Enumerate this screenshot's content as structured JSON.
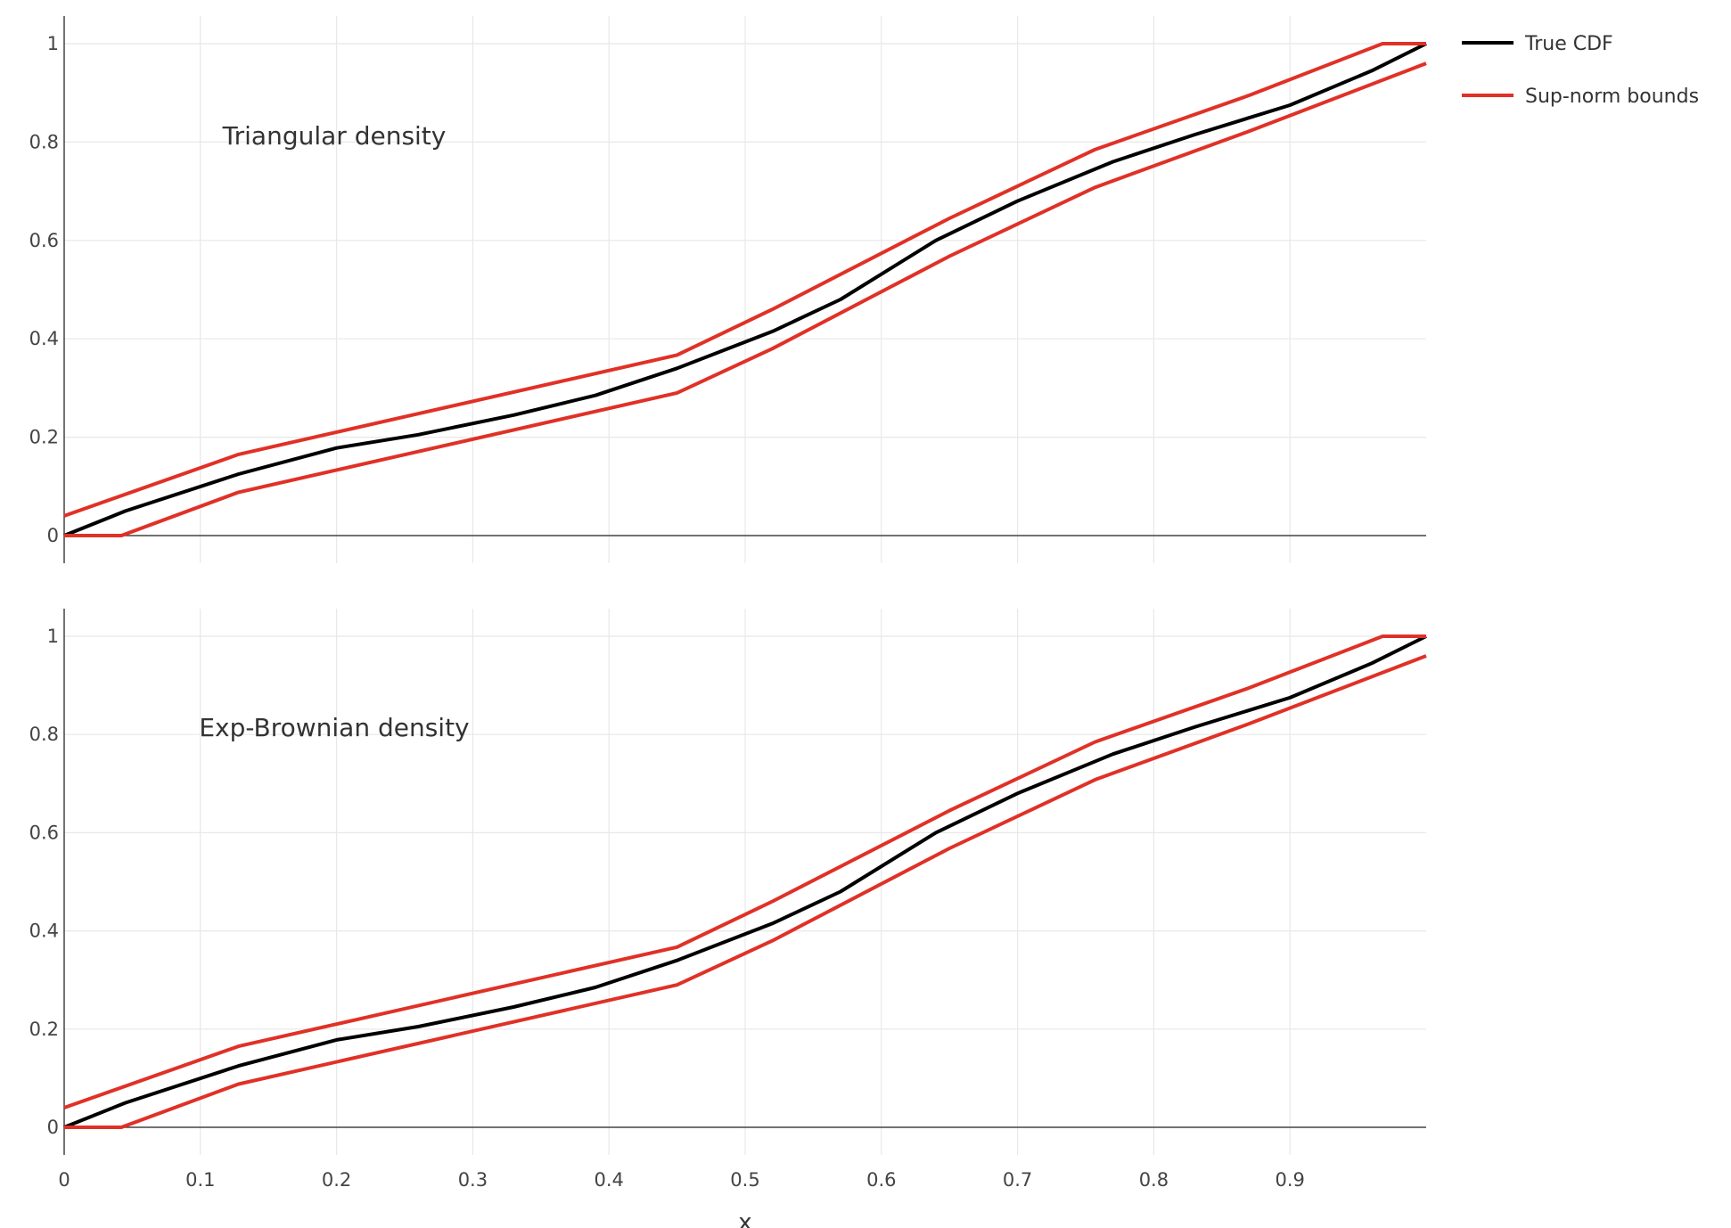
{
  "chart_data": [
    {
      "type": "line",
      "annotation": "Triangular  density",
      "xlim": [
        0,
        1
      ],
      "ylim": [
        0,
        1
      ],
      "x_ticks": [
        0,
        0.1,
        0.2,
        0.3,
        0.4,
        0.5,
        0.6,
        0.7,
        0.8,
        0.9
      ],
      "y_ticks": [
        0,
        0.2,
        0.4,
        0.6,
        0.8,
        1
      ],
      "grid": true,
      "series": [
        {
          "name": "True CDF",
          "color": "#000000",
          "x": [
            0,
            0.045,
            0.128,
            0.2,
            0.26,
            0.33,
            0.39,
            0.45,
            0.52,
            0.57,
            0.64,
            0.7,
            0.77,
            0.83,
            0.9,
            0.96,
            1.0
          ],
          "y": [
            0,
            0.05,
            0.125,
            0.178,
            0.205,
            0.245,
            0.285,
            0.34,
            0.415,
            0.48,
            0.6,
            0.68,
            0.76,
            0.815,
            0.875,
            0.945,
            1.0
          ]
        },
        {
          "name": "Sup-norm bounds",
          "color": "#e03127",
          "x": [
            0,
            0.128,
            0.45,
            0.52,
            0.65,
            0.757,
            0.87,
            0.968,
            1.0
          ],
          "y": [
            0.04,
            0.165,
            0.367,
            0.46,
            0.645,
            0.785,
            0.895,
            1.0,
            1.0
          ]
        },
        {
          "color": "#e03127",
          "x": [
            0,
            0.042,
            0.128,
            0.45,
            0.52,
            0.65,
            0.757,
            0.87,
            1.0
          ],
          "y": [
            0,
            0,
            0.088,
            0.29,
            0.38,
            0.568,
            0.708,
            0.822,
            0.96
          ]
        }
      ]
    },
    {
      "type": "line",
      "annotation": "Exp-Brownian  density",
      "xlim": [
        0,
        1
      ],
      "ylim": [
        0,
        1
      ],
      "x_ticks": [
        0,
        0.1,
        0.2,
        0.3,
        0.4,
        0.5,
        0.6,
        0.7,
        0.8,
        0.9
      ],
      "y_ticks": [
        0,
        0.2,
        0.4,
        0.6,
        0.8,
        1
      ],
      "grid": true,
      "xlabel": "x",
      "series": [
        {
          "name": "True CDF",
          "color": "#000000",
          "x": [
            0,
            0.045,
            0.128,
            0.2,
            0.26,
            0.33,
            0.39,
            0.45,
            0.52,
            0.57,
            0.64,
            0.7,
            0.77,
            0.83,
            0.9,
            0.96,
            1.0
          ],
          "y": [
            0,
            0.05,
            0.125,
            0.178,
            0.205,
            0.245,
            0.285,
            0.34,
            0.415,
            0.48,
            0.6,
            0.68,
            0.76,
            0.815,
            0.875,
            0.945,
            1.0
          ]
        },
        {
          "name": "Sup-norm bounds",
          "color": "#e03127",
          "x": [
            0,
            0.128,
            0.45,
            0.52,
            0.65,
            0.757,
            0.87,
            0.968,
            1.0
          ],
          "y": [
            0.04,
            0.165,
            0.367,
            0.46,
            0.645,
            0.785,
            0.895,
            1.0,
            1.0
          ]
        },
        {
          "color": "#e03127",
          "x": [
            0,
            0.042,
            0.128,
            0.45,
            0.52,
            0.65,
            0.757,
            0.87,
            1.0
          ],
          "y": [
            0,
            0,
            0.088,
            0.29,
            0.38,
            0.568,
            0.708,
            0.822,
            0.96
          ]
        }
      ]
    }
  ],
  "legend": {
    "placement": "top-right",
    "items": [
      {
        "label": "True CDF",
        "color": "#000000"
      },
      {
        "label": "Sup-norm bounds",
        "color": "#e03127"
      }
    ]
  }
}
